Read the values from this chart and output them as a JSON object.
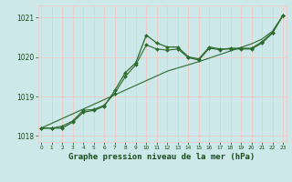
{
  "xlabel": "Graphe pression niveau de la mer (hPa)",
  "hours": [
    0,
    1,
    2,
    3,
    4,
    5,
    6,
    7,
    8,
    9,
    10,
    11,
    12,
    13,
    14,
    15,
    16,
    17,
    18,
    19,
    20,
    21,
    22,
    23
  ],
  "series1": [
    1018.2,
    1018.2,
    1018.2,
    1018.35,
    1018.6,
    1018.65,
    1018.75,
    1019.15,
    1019.6,
    1019.85,
    1020.55,
    1020.35,
    1020.25,
    1020.25,
    1020.0,
    1019.95,
    1020.25,
    1020.2,
    1020.2,
    1020.2,
    1020.2,
    1020.35,
    1020.6,
    1021.05
  ],
  "trend_line": [
    1018.2,
    1018.32,
    1018.44,
    1018.56,
    1018.68,
    1018.8,
    1018.92,
    1019.04,
    1019.16,
    1019.28,
    1019.4,
    1019.52,
    1019.64,
    1019.72,
    1019.8,
    1019.88,
    1019.97,
    1020.06,
    1020.15,
    1020.24,
    1020.33,
    1020.45,
    1020.65,
    1021.05
  ],
  "series2": [
    1018.2,
    1018.2,
    1018.25,
    1018.38,
    1018.65,
    1018.67,
    1018.78,
    1019.08,
    1019.5,
    1019.8,
    1020.3,
    1020.2,
    1020.17,
    1020.2,
    1019.98,
    1019.92,
    1020.22,
    1020.18,
    1020.22,
    1020.22,
    1020.22,
    1020.38,
    1020.62,
    1021.05
  ],
  "ylim": [
    1017.85,
    1021.3
  ],
  "yticks": [
    1018,
    1019,
    1020,
    1021
  ],
  "xlim": [
    -0.3,
    23.3
  ],
  "line_color": "#2d6a2d",
  "bg_color": "#cce8e8",
  "grid_color": "#f0c8c8",
  "tick_color": "#1a4a1a",
  "xlabel_fontsize": 6.5,
  "ytick_fontsize": 5.5,
  "xtick_fontsize": 4.2,
  "marker": "D",
  "markersize": 2.0
}
